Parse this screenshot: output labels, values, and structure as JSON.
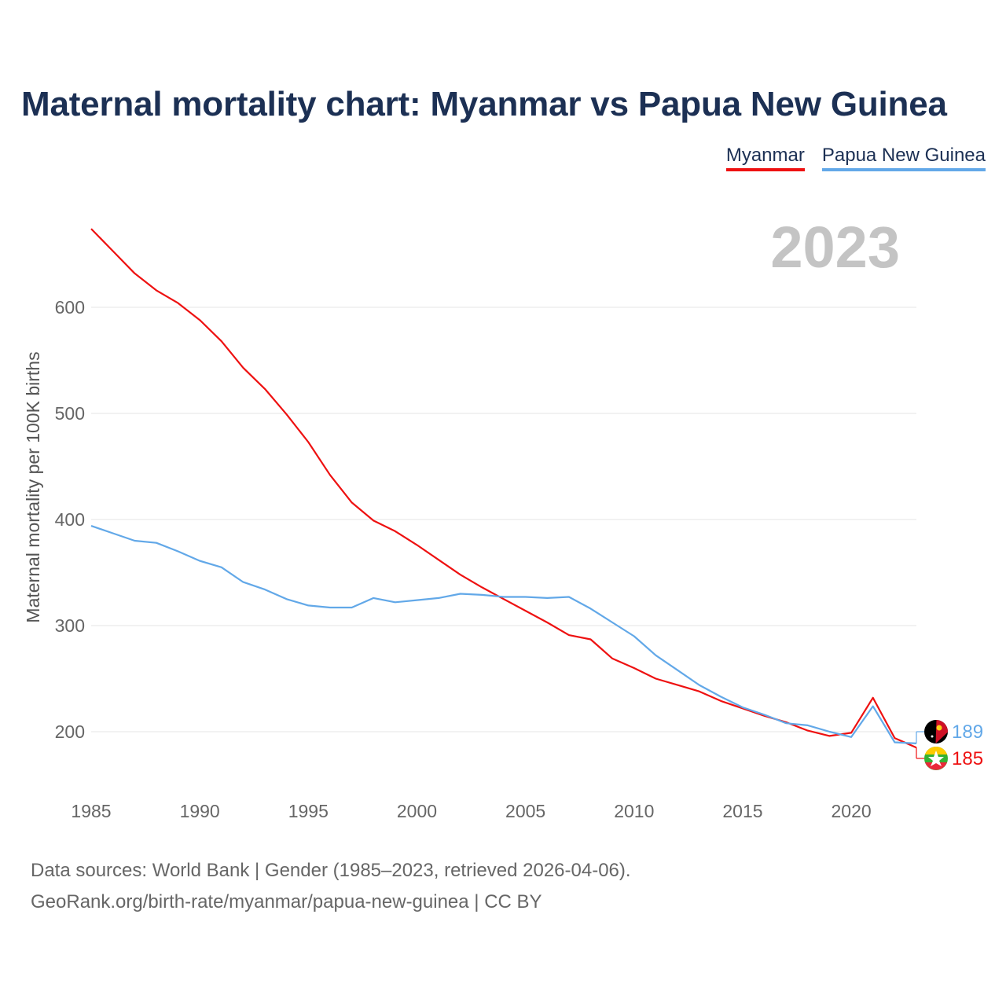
{
  "title": "Maternal mortality chart: Myanmar vs Papua New Guinea",
  "legend": {
    "myanmar": "Myanmar",
    "png": "Papua New Guinea"
  },
  "year_label": "2023",
  "colors": {
    "myanmar": "#ee1111",
    "png": "#62a8e8",
    "title": "#1c3054"
  },
  "footer": {
    "line1": "Data sources: World Bank | Gender (1985–2023, retrieved 2026-04-06).",
    "line2": "GeoRank.org/birth-rate/myanmar/papua-new-guinea | CC BY"
  },
  "chart_data": {
    "type": "line",
    "title": "Maternal mortality chart: Myanmar vs Papua New Guinea",
    "ylabel": "Maternal mortality per 100K births",
    "xlabel": "",
    "xlim": [
      1985,
      2023
    ],
    "ylim": [
      150,
      700
    ],
    "x_ticks": [
      1985,
      1990,
      1995,
      2000,
      2005,
      2010,
      2015,
      2020
    ],
    "y_ticks": [
      200,
      300,
      400,
      500,
      600
    ],
    "grid": true,
    "x": [
      1985,
      1986,
      1987,
      1988,
      1989,
      1990,
      1991,
      1992,
      1993,
      1994,
      1995,
      1996,
      1997,
      1998,
      1999,
      2000,
      2001,
      2002,
      2003,
      2004,
      2005,
      2006,
      2007,
      2008,
      2009,
      2010,
      2011,
      2012,
      2013,
      2014,
      2015,
      2016,
      2017,
      2018,
      2019,
      2020,
      2021,
      2022,
      2023
    ],
    "series": [
      {
        "name": "Myanmar",
        "color": "#ee1111",
        "end_label": "185",
        "values": [
          674,
          653,
          632,
          616,
          604,
          588,
          568,
          543,
          523,
          499,
          473,
          442,
          416,
          399,
          389,
          376,
          362,
          348,
          336,
          325,
          314,
          303,
          291,
          287,
          269,
          260,
          250,
          244,
          238,
          229,
          222,
          215,
          209,
          201,
          196,
          199,
          232,
          194,
          185
        ]
      },
      {
        "name": "Papua New Guinea",
        "color": "#62a8e8",
        "end_label": "189",
        "values": [
          394,
          387,
          380,
          378,
          370,
          361,
          355,
          341,
          334,
          325,
          319,
          317,
          317,
          326,
          322,
          324,
          326,
          330,
          329,
          327,
          327,
          326,
          327,
          316,
          303,
          290,
          272,
          258,
          244,
          233,
          223,
          216,
          208,
          206,
          200,
          195,
          224,
          190,
          189
        ]
      }
    ]
  }
}
